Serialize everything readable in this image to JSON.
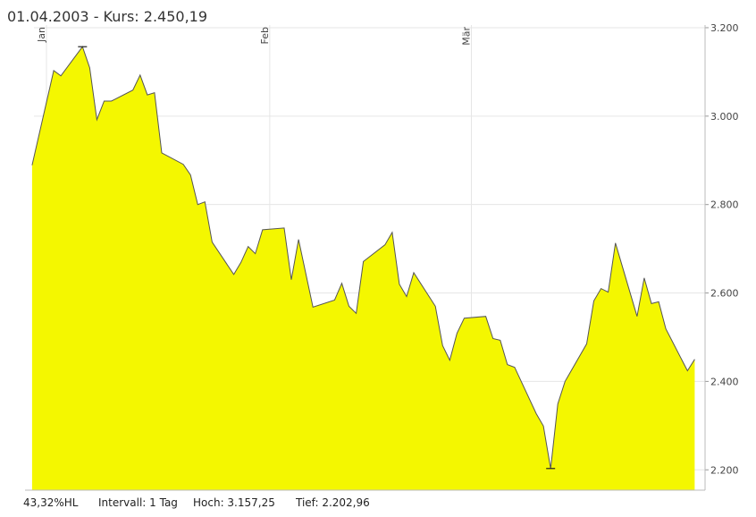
{
  "header": "01.04.2003  -  Kurs: 2.450,19",
  "footer": [
    "43,32%HL",
    "Intervall: 1 Tag",
    "Hoch: 3.157,25",
    "Tief: 2.202,96"
  ],
  "chart_data": {
    "type": "area",
    "color": "#f4f700",
    "line_color": "#555555",
    "grid": true,
    "x": [
      -2,
      1,
      2,
      5,
      6,
      7,
      8,
      9,
      12,
      13,
      14,
      15,
      16,
      19,
      20,
      21,
      22,
      23,
      26,
      27,
      28,
      29,
      30,
      33,
      34,
      35,
      37,
      40,
      41,
      42,
      43,
      44,
      47,
      48,
      49,
      50,
      51,
      54,
      55,
      56,
      57,
      58,
      61,
      62,
      63,
      64,
      65,
      68,
      69,
      70,
      71,
      72,
      75,
      76,
      77,
      78,
      79,
      82,
      83,
      84,
      85,
      86,
      89,
      90
    ],
    "values": [
      2889,
      3103,
      3091,
      3157,
      3109,
      2992,
      3034,
      3034,
      3059,
      3093,
      3048,
      3053,
      2917,
      2891,
      2867,
      2800,
      2806,
      2715,
      2642,
      2669,
      2705,
      2689,
      2743,
      2747,
      2630,
      2721,
      2568,
      2584,
      2622,
      2570,
      2554,
      2671,
      2709,
      2737,
      2620,
      2592,
      2646,
      2570,
      2481,
      2448,
      2509,
      2543,
      2547,
      2497,
      2493,
      2438,
      2432,
      2327,
      2299,
      2203,
      2349,
      2400,
      2485,
      2582,
      2610,
      2602,
      2713,
      2547,
      2634,
      2576,
      2580,
      2519,
      2424,
      2450
    ],
    "xlim": [
      -1.74,
      90.7
    ],
    "xticks": [
      {
        "value": 0,
        "label": "Jan"
      },
      {
        "value": 31,
        "label": "Feb"
      },
      {
        "value": 59,
        "label": "Mär"
      }
    ],
    "ylim": [
      2154,
      3206
    ],
    "yticks": [
      {
        "value": 2200,
        "label": "2.200"
      },
      {
        "value": 2400,
        "label": "2.400"
      },
      {
        "value": 2600,
        "label": "2.600"
      },
      {
        "value": 2800,
        "label": "2.800"
      },
      {
        "value": 3000,
        "label": "3.000"
      },
      {
        "value": 3200,
        "label": "3.200"
      }
    ]
  }
}
